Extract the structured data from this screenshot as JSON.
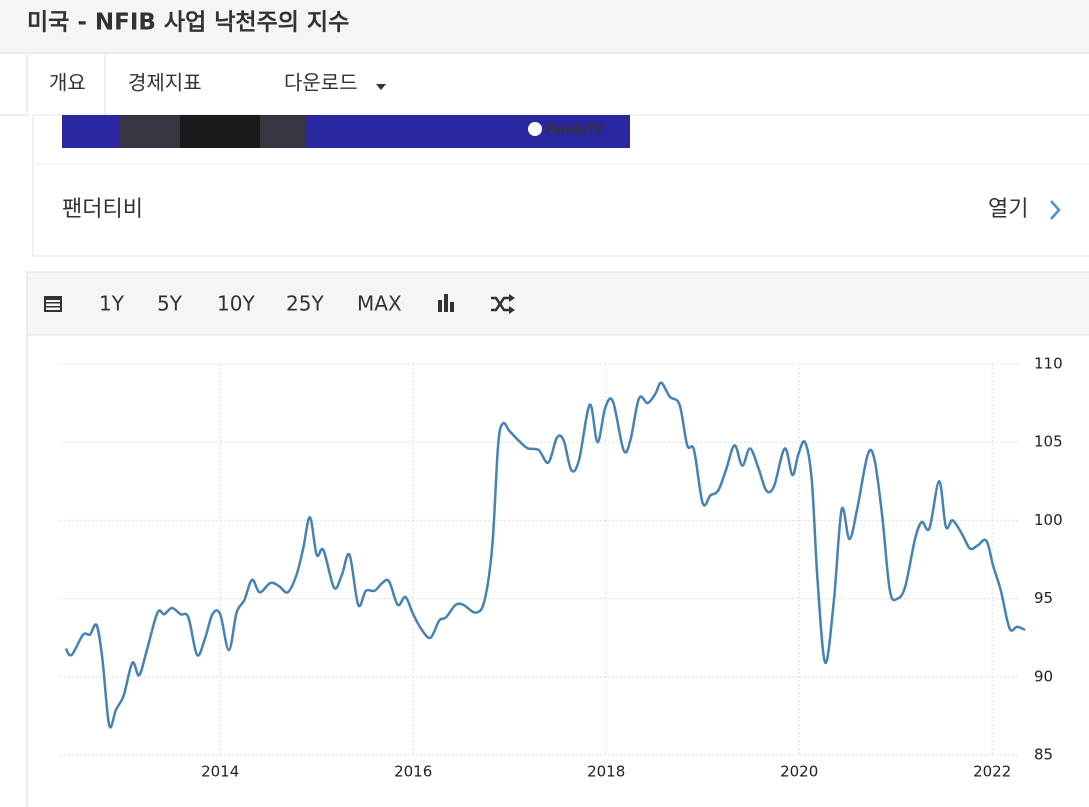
{
  "header": {
    "title": "미국 - NFIB 사업 낙천주의 지수"
  },
  "tabs": [
    "개요",
    "경제지표",
    "다운로드"
  ],
  "ad": {
    "logo": "PandaTV",
    "name": "팬더티비",
    "action": "열기"
  },
  "toolbar": {
    "ranges": [
      "1Y",
      "5Y",
      "10Y",
      "25Y",
      "MAX"
    ]
  },
  "chart_data": {
    "type": "line",
    "color": "#4682b4",
    "grid": true,
    "x": [
      2012.4,
      2012.46,
      2012.58,
      2012.65,
      2012.72,
      2012.78,
      2012.85,
      2012.92,
      2013.0,
      2013.09,
      2013.16,
      2013.24,
      2013.35,
      2013.42,
      2013.5,
      2013.59,
      2013.67,
      2013.76,
      2013.84,
      2013.92,
      2014.0,
      2014.09,
      2014.17,
      2014.25,
      2014.33,
      2014.41,
      2014.52,
      2014.61,
      2014.7,
      2014.79,
      2014.86,
      2014.93,
      2015.0,
      2015.07,
      2015.18,
      2015.26,
      2015.34,
      2015.43,
      2015.51,
      2015.6,
      2015.68,
      2015.75,
      2015.84,
      2015.92,
      2016.0,
      2016.09,
      2016.18,
      2016.27,
      2016.34,
      2016.44,
      2016.52,
      2016.65,
      2016.74,
      2016.82,
      2016.88,
      2016.93,
      2017.0,
      2017.11,
      2017.19,
      2017.3,
      2017.4,
      2017.49,
      2017.56,
      2017.64,
      2017.72,
      2017.83,
      2017.91,
      2017.99,
      2018.07,
      2018.18,
      2018.25,
      2018.34,
      2018.43,
      2018.51,
      2018.57,
      2018.66,
      2018.76,
      2018.84,
      2018.91,
      2019.0,
      2019.08,
      2019.16,
      2019.24,
      2019.33,
      2019.41,
      2019.49,
      2019.58,
      2019.66,
      2019.74,
      2019.85,
      2019.93,
      2019.99,
      2020.06,
      2020.13,
      2020.19,
      2020.27,
      2020.36,
      2020.44,
      2020.52,
      2020.6,
      2020.71,
      2020.78,
      2020.86,
      2020.94,
      2021.02,
      2021.1,
      2021.2,
      2021.27,
      2021.35,
      2021.45,
      2021.52,
      2021.59,
      2021.69,
      2021.77,
      2021.85,
      2021.94,
      2022.01,
      2022.09,
      2022.18,
      2022.26,
      2022.34
    ],
    "values": [
      91.8,
      91.4,
      92.7,
      92.7,
      93.3,
      91.1,
      86.9,
      87.9,
      88.8,
      90.9,
      90.1,
      91.7,
      94.1,
      94.0,
      94.4,
      94.0,
      93.8,
      91.4,
      92.4,
      94.0,
      94.0,
      91.7,
      94.1,
      94.9,
      96.2,
      95.4,
      96.0,
      95.8,
      95.4,
      96.5,
      98.2,
      100.2,
      97.8,
      98.1,
      95.7,
      96.5,
      97.8,
      94.6,
      95.5,
      95.5,
      96.0,
      96.1,
      94.6,
      95.1,
      94.0,
      93.0,
      92.5,
      93.6,
      93.8,
      94.6,
      94.6,
      94.1,
      94.9,
      98.4,
      104.8,
      106.2,
      105.7,
      105.0,
      104.6,
      104.5,
      103.7,
      105.3,
      105.1,
      103.2,
      103.9,
      107.4,
      105.0,
      107.2,
      107.6,
      104.5,
      105.1,
      107.8,
      107.5,
      108.1,
      108.8,
      107.9,
      107.4,
      104.8,
      104.5,
      101.1,
      101.6,
      101.9,
      103.2,
      104.8,
      103.5,
      104.6,
      103.3,
      101.9,
      102.2,
      104.6,
      102.9,
      104.2,
      105.0,
      102.6,
      96.2,
      90.9,
      94.9,
      100.7,
      98.8,
      100.7,
      104.2,
      103.9,
      100.3,
      95.5,
      95.0,
      95.8,
      98.8,
      99.9,
      99.5,
      102.5,
      99.6,
      100.0,
      99.1,
      98.2,
      98.4,
      98.7,
      97.1,
      95.5,
      93.1,
      93.2,
      93.0
    ],
    "xlim": [
      2012.34,
      2022.34
    ],
    "xticks": [
      2014,
      2016,
      2018,
      2020,
      2022
    ],
    "ylim": [
      85,
      110
    ],
    "yticks": [
      85,
      90,
      95,
      100,
      105,
      110
    ]
  }
}
